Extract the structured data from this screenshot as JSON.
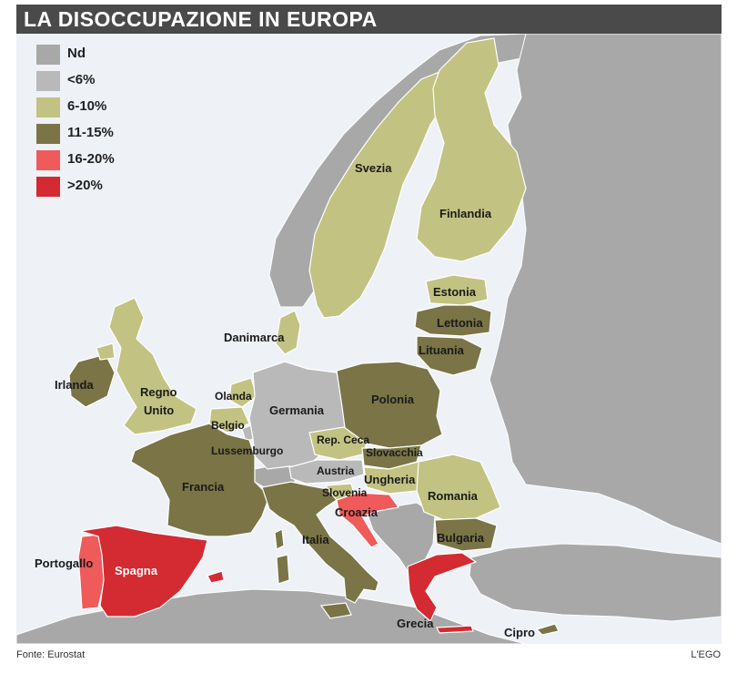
{
  "title": "LA DISOCCUPAZIONE IN EUROPA",
  "legend": [
    {
      "label": "Nd",
      "color": "#a8a8a8"
    },
    {
      "label": "<6%",
      "color": "#b9b9b9"
    },
    {
      "label": "6-10%",
      "color": "#c2c283"
    },
    {
      "label": "11-15%",
      "color": "#7a7446"
    },
    {
      "label": "16-20%",
      "color": "#ef5a5a"
    },
    {
      "label": ">20%",
      "color": "#d42a32"
    }
  ],
  "countries": [
    {
      "name": "Svezia",
      "class": "6-10%"
    },
    {
      "name": "Finlandia",
      "class": "6-10%"
    },
    {
      "name": "Estonia",
      "class": "6-10%"
    },
    {
      "name": "Lettonia",
      "class": "11-15%"
    },
    {
      "name": "Lituania",
      "class": "11-15%"
    },
    {
      "name": "Danimarca",
      "class": "6-10%"
    },
    {
      "name": "Irlanda",
      "class": "11-15%"
    },
    {
      "name": "Regno Unito",
      "class": "6-10%"
    },
    {
      "name": "Olanda",
      "class": "6-10%"
    },
    {
      "name": "Belgio",
      "class": "6-10%"
    },
    {
      "name": "Lussemburgo",
      "class": "<6%"
    },
    {
      "name": "Germania",
      "class": "<6%"
    },
    {
      "name": "Polonia",
      "class": "11-15%"
    },
    {
      "name": "Rep. Ceca",
      "class": "6-10%"
    },
    {
      "name": "Slovacchia",
      "class": "11-15%"
    },
    {
      "name": "Austria",
      "class": "<6%"
    },
    {
      "name": "Ungheria",
      "class": "11-15%"
    },
    {
      "name": "Slovenia",
      "class": "6-10%"
    },
    {
      "name": "Romania",
      "class": "6-10%"
    },
    {
      "name": "Croazia",
      "class": "16-20%"
    },
    {
      "name": "Bulgaria",
      "class": "11-15%"
    },
    {
      "name": "Francia",
      "class": "11-15%"
    },
    {
      "name": "Italia",
      "class": "11-15%"
    },
    {
      "name": "Portogallo",
      "class": "16-20%"
    },
    {
      "name": "Spagna",
      "class": ">20%"
    },
    {
      "name": "Grecia",
      "class": ">20%"
    },
    {
      "name": "Cipro",
      "class": "11-15%"
    }
  ],
  "labels": {
    "svezia": "Svezia",
    "finlandia": "Finlandia",
    "estonia": "Estonia",
    "lettonia": "Lettonia",
    "lituania": "Lituania",
    "danimarca": "Danimarca",
    "irlanda": "Irlanda",
    "regno_1": "Regno",
    "regno_2": "Unito",
    "olanda": "Olanda",
    "belgio": "Belgio",
    "lussemburgo": "Lussemburgo",
    "germania": "Germania",
    "polonia": "Polonia",
    "repceca": "Rep. Ceca",
    "slovacchia": "Slovacchia",
    "austria": "Austria",
    "ungheria": "Ungheria",
    "slovenia": "Slovenia",
    "romania": "Romania",
    "croazia": "Croazia",
    "bulgaria": "Bulgaria",
    "francia": "Francia",
    "italia": "Italia",
    "portogallo": "Portogallo",
    "spagna": "Spagna",
    "grecia": "Grecia",
    "cipro": "Cipro"
  },
  "colors": {
    "sea": "#eef1f6",
    "nd": "#a8a8a8",
    "low": "#b9b9b9",
    "mid": "#c2c283",
    "high": "#7a7446",
    "vhigh": "#ef5a5a",
    "max": "#d42a32"
  },
  "footer": {
    "source": "Fonte: Eurostat",
    "credit": "L'EGO"
  }
}
